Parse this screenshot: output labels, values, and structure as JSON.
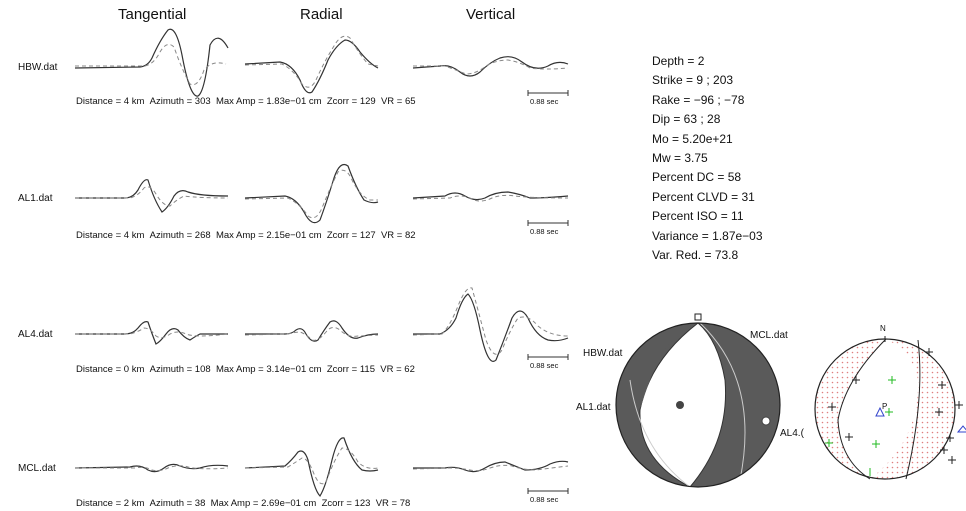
{
  "headers": [
    "Tangential",
    "Radial",
    "Vertical"
  ],
  "stations": [
    {
      "name": "HBW.dat",
      "distance": "Distance = 4 km",
      "azimuth": "Azimuth = 303",
      "maxamp": "Max Amp = 1.83e−01 cm",
      "zcorr": "Zcorr = 129",
      "vr": "VR = 65"
    },
    {
      "name": "AL1.dat",
      "distance": "Distance = 4 km",
      "azimuth": "Azimuth = 268",
      "maxamp": "Max Amp = 2.15e−01 cm",
      "zcorr": "Zcorr = 127",
      "vr": "VR = 82"
    },
    {
      "name": "AL4.dat",
      "distance": "Distance = 0 km",
      "azimuth": "Azimuth = 108",
      "maxamp": "Max Amp = 3.14e−01 cm",
      "zcorr": "Zcorr = 115",
      "vr": "VR = 62"
    },
    {
      "name": "MCL.dat",
      "distance": "Distance = 2 km",
      "azimuth": "Azimuth = 38",
      "maxamp": "Max Amp = 2.69e−01 cm",
      "zcorr": "Zcorr = 123",
      "vr": "VR = 78"
    }
  ],
  "scale_label": "0.88 sec",
  "parameters": [
    "Depth = 2",
    "Strike = 9 ; 203",
    "Rake = −96 ; −78",
    "Dip = 63 ; 28",
    "Mo = 5.20e+21",
    "Mw = 3.75",
    "Percent DC = 58",
    "Percent CLVD = 31",
    "Percent ISO = 11",
    "Variance = 1.87e−03",
    "Var. Red. = 73.8"
  ],
  "beachball_labels": {
    "hbw": "HBW.dat",
    "mcl": "MCL.dat",
    "al1": "AL1.dat",
    "al4": "AL4.("
  },
  "polarity_plot": {
    "north": "N",
    "p_axis": "P"
  },
  "colors": {
    "trace_obs": "#333333",
    "trace_syn": "#888888",
    "compressional": "#5a5a5a",
    "stipple": "#e08080",
    "green": "#22bb22",
    "blue": "#3344cc"
  }
}
